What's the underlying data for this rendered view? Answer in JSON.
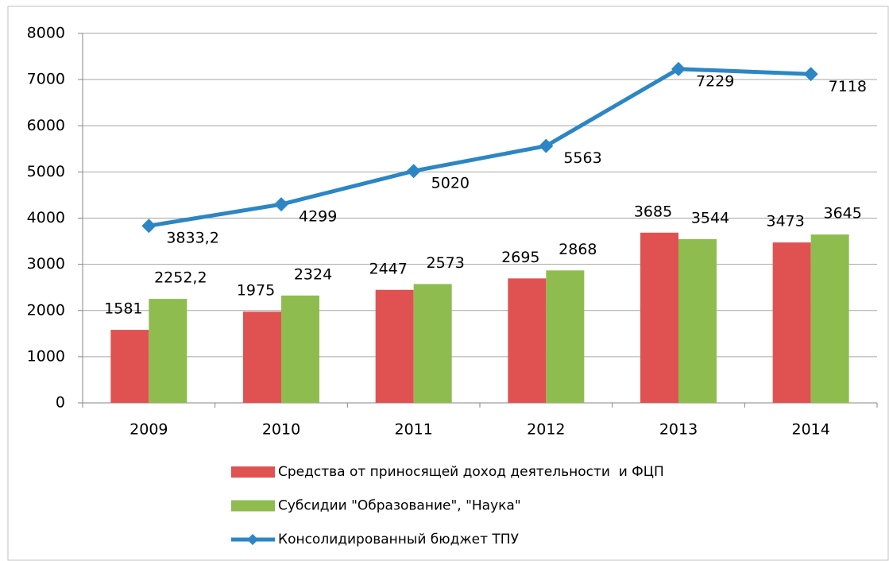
{
  "chart_data": {
    "type": "bar_line",
    "categories": [
      "2009",
      "2010",
      "2011",
      "2012",
      "2013",
      "2014"
    ],
    "series": [
      {
        "name": "Средства от приносящей доход деятельности  и ФЦП",
        "type": "bar",
        "color": "#e05252",
        "values": [
          1581,
          1975,
          2447,
          2695,
          3685,
          3473
        ]
      },
      {
        "name": "Субсидии \"Образование\", \"Наука\"",
        "type": "bar",
        "color": "#8fbc4f",
        "values": [
          2252.2,
          2324,
          2573,
          2868,
          3544,
          3645
        ],
        "value_labels": [
          "2252,2",
          "2324",
          "2573",
          "2868",
          "3544",
          "3645"
        ]
      },
      {
        "name": "Консолидированный бюджет ТПУ",
        "type": "line",
        "color": "#2c86c4",
        "values": [
          3833.2,
          4299,
          5020,
          5563,
          7229,
          7118
        ],
        "value_labels": [
          "3833,2",
          "4299",
          "5020",
          "5563",
          "7229",
          "7118"
        ]
      }
    ],
    "ylim": [
      0,
      8000
    ],
    "yticks": [
      0,
      1000,
      2000,
      3000,
      4000,
      5000,
      6000,
      7000,
      8000
    ],
    "grid": true,
    "legend": "bottom"
  }
}
